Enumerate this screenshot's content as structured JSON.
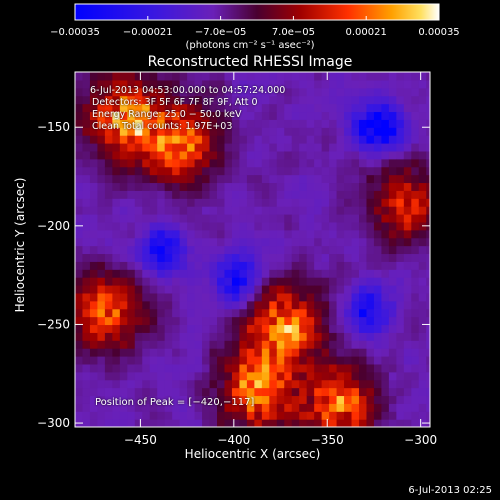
{
  "chart_data": {
    "type": "heatmap",
    "title": "Reconstructed RHESSI Image",
    "xlabel": "Heliocentric X (arcsec)",
    "ylabel": "Heliocentric Y (arcsec)",
    "xlim": [
      -485,
      -295
    ],
    "ylim": [
      -302,
      -122
    ],
    "x_ticks": [
      -450,
      -400,
      -350,
      -300
    ],
    "x_tick_labels": [
      "−450",
      "−400",
      "−350",
      "−300"
    ],
    "y_ticks": [
      -300,
      -250,
      -200,
      -150
    ],
    "y_tick_labels": [
      "−300",
      "−250",
      "−200",
      "−150"
    ],
    "colorbar": {
      "min": -0.00035,
      "max": 0.00035,
      "ticks": [
        -0.00035,
        -0.00021,
        -7e-05,
        7e-05,
        0.00021,
        0.00035
      ],
      "tick_labels": [
        "−0.00035",
        "−0.00021",
        "−7.0e−05",
        "7.0e−05",
        "0.00021",
        "0.00035"
      ],
      "units_label": "(photons cm⁻² s⁻¹ asec⁻²)"
    },
    "colors": [
      "#0000ff",
      "#3c00ff",
      "#5a10c8",
      "#6a20b8",
      "#8a0000",
      "#d00000",
      "#ff5000",
      "#ffa000",
      "#ffd040",
      "#ffffff"
    ],
    "features": [
      {
        "label": "bright",
        "x": -460,
        "y": -147,
        "value": 0.00033
      },
      {
        "label": "bright",
        "x": -430,
        "y": -160,
        "value": 0.00028
      },
      {
        "label": "bright",
        "x": -375,
        "y": -252,
        "value": 0.0003
      },
      {
        "label": "bright",
        "x": -390,
        "y": -285,
        "value": 0.00031
      },
      {
        "label": "bright",
        "x": -345,
        "y": -292,
        "value": 0.00028
      },
      {
        "label": "bright",
        "x": -470,
        "y": -245,
        "value": 0.00025
      },
      {
        "label": "bright",
        "x": -310,
        "y": -190,
        "value": 0.0002
      },
      {
        "label": "dark",
        "x": -325,
        "y": -152,
        "value": -0.00033
      },
      {
        "label": "dark",
        "x": -440,
        "y": -215,
        "value": -0.00025
      },
      {
        "label": "dark",
        "x": -400,
        "y": -230,
        "value": -0.00022
      },
      {
        "label": "dark",
        "x": -330,
        "y": -245,
        "value": -0.00022
      }
    ],
    "peak": [
      -420,
      -117
    ]
  },
  "annotations": {
    "time_range": "6-Jul-2013 04:53:00.000 to 04:57:24.000",
    "detectors": "Detectors: 3F 5F 6F 7F 8F 9F, Att 0",
    "energy": "Energy Range: 25.0 − 50.0 keV",
    "clean": "Clean     Total counts: 1.97E+03",
    "peak": "Position of Peak = [−420,−117]"
  },
  "footer": {
    "datestamp": "6-Jul-2013 02:25"
  }
}
